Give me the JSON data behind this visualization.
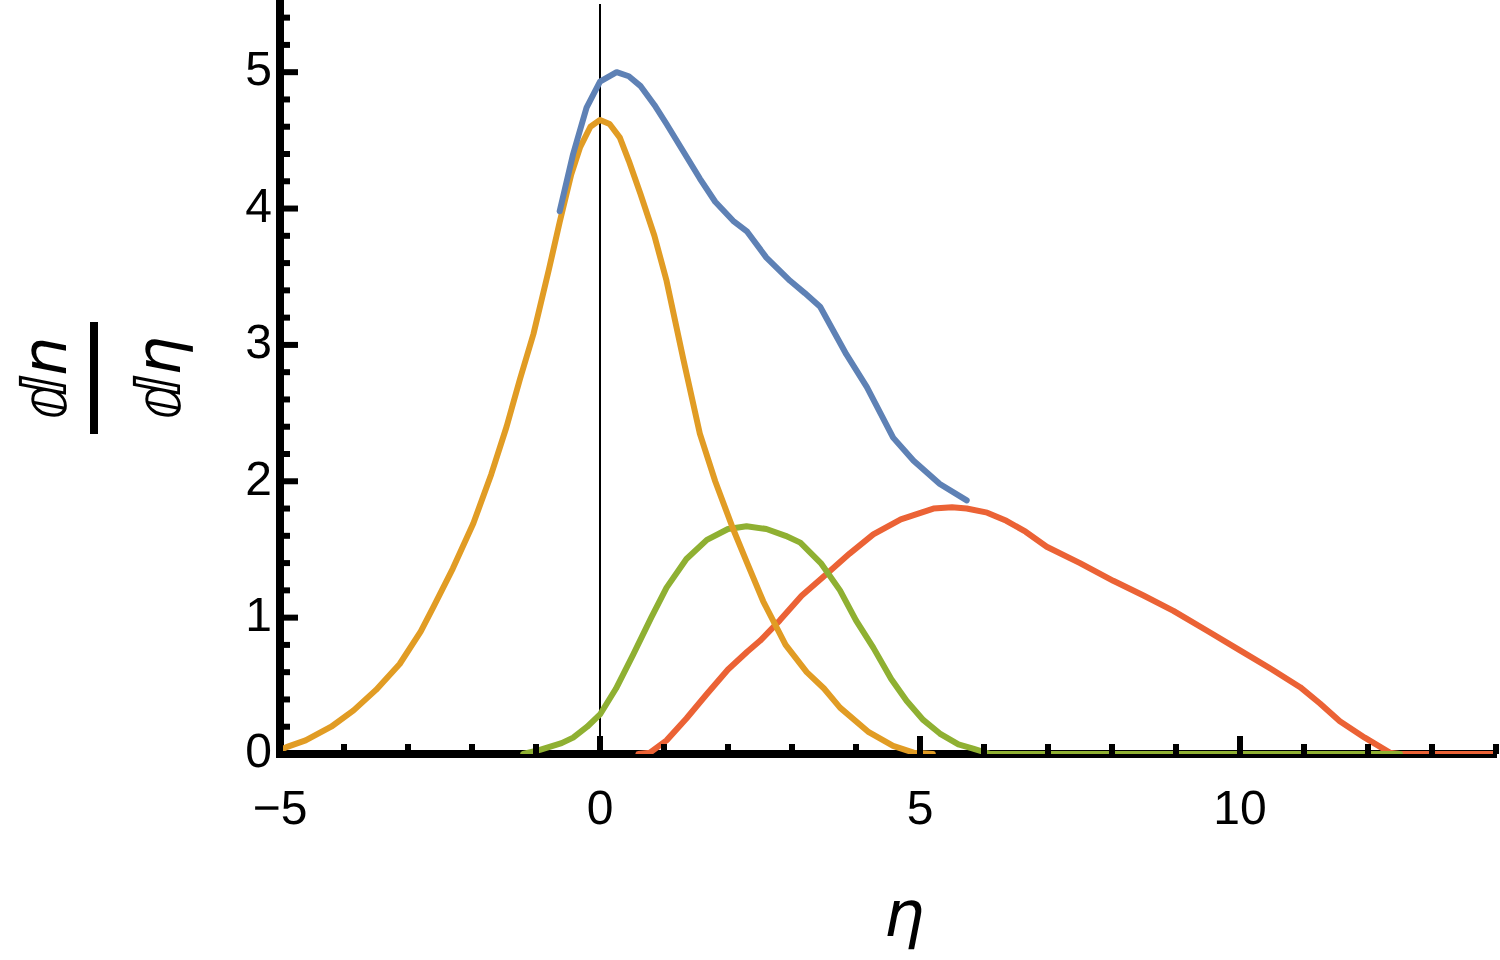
{
  "chart_data": {
    "type": "line",
    "xlabel": "η",
    "ylabel": "ⅆn\nⅆη",
    "xlim": [
      -5,
      14
    ],
    "ylim": [
      0,
      5.5
    ],
    "xticks": [
      {
        "value": -5,
        "label": "−5"
      },
      {
        "value": -4,
        "label": null
      },
      {
        "value": -3,
        "label": null
      },
      {
        "value": -2,
        "label": null
      },
      {
        "value": -1,
        "label": null
      },
      0,
      {
        "value": 1,
        "label": null
      },
      {
        "value": 2,
        "label": null
      },
      {
        "value": 3,
        "label": null
      },
      {
        "value": 4,
        "label": null
      },
      5,
      {
        "value": 6,
        "label": null
      },
      {
        "value": 7,
        "label": null
      },
      {
        "value": 8,
        "label": null
      },
      {
        "value": 9,
        "label": null
      },
      10,
      {
        "value": 11,
        "label": null
      },
      {
        "value": 12,
        "label": null
      },
      {
        "value": 13,
        "label": null
      },
      {
        "value": 14,
        "label": null
      }
    ],
    "yticks": [
      0,
      {
        "value": 0.2,
        "label": null
      },
      {
        "value": 0.4,
        "label": null
      },
      {
        "value": 0.6,
        "label": null
      },
      {
        "value": 0.8,
        "label": null
      },
      1,
      {
        "value": 1.2,
        "label": null
      },
      {
        "value": 1.4,
        "label": null
      },
      {
        "value": 1.6,
        "label": null
      },
      {
        "value": 1.8,
        "label": null
      },
      2,
      {
        "value": 2.2,
        "label": null
      },
      {
        "value": 2.4,
        "label": null
      },
      {
        "value": 2.6,
        "label": null
      },
      {
        "value": 2.8,
        "label": null
      },
      3,
      {
        "value": 3.2,
        "label": null
      },
      {
        "value": 3.4,
        "label": null
      },
      {
        "value": 3.6,
        "label": null
      },
      {
        "value": 3.8,
        "label": null
      },
      4,
      {
        "value": 4.2,
        "label": null
      },
      {
        "value": 4.4,
        "label": null
      },
      {
        "value": 4.6,
        "label": null
      },
      {
        "value": 4.8,
        "label": null
      },
      5,
      {
        "value": 5.2,
        "label": null
      },
      {
        "value": 5.4,
        "label": null
      }
    ],
    "ref_lines": [
      {
        "axis": "x",
        "value": 0,
        "color": "#000000"
      }
    ],
    "series": [
      {
        "color": "#5e81b5",
        "x": [
          -0.63,
          -0.42,
          -0.21,
          0,
          0.26,
          0.45,
          0.63,
          0.85,
          1.04,
          1.3,
          1.56,
          1.8,
          2.08,
          2.3,
          2.6,
          2.97,
          3.2,
          3.44,
          3.65,
          3.85,
          4.17,
          4.58,
          4.9,
          5.31,
          5.73
        ],
        "values": [
          3.98,
          4.4,
          4.74,
          4.93,
          5.0,
          4.97,
          4.9,
          4.76,
          4.62,
          4.42,
          4.22,
          4.05,
          3.91,
          3.83,
          3.64,
          3.47,
          3.38,
          3.28,
          3.1,
          2.93,
          2.69,
          2.32,
          2.15,
          1.98,
          1.86
        ]
      },
      {
        "color": "#e19c24",
        "x": [
          -5,
          -4.9,
          -4.6,
          -4.2,
          -3.85,
          -3.5,
          -3.13,
          -2.8,
          -2.6,
          -2.3,
          -1.98,
          -1.7,
          -1.46,
          -1.25,
          -1.04,
          -0.8,
          -0.63,
          -0.45,
          -0.31,
          -0.15,
          0,
          0.15,
          0.31,
          0.45,
          0.63,
          0.85,
          1.04,
          1.3,
          1.56,
          1.8,
          2.08,
          2.3,
          2.55,
          2.9,
          3.23,
          3.5,
          3.75,
          4.2,
          4.58,
          4.9,
          5.2
        ],
        "values": [
          0.03,
          0.05,
          0.1,
          0.2,
          0.32,
          0.47,
          0.66,
          0.9,
          1.08,
          1.36,
          1.69,
          2.05,
          2.4,
          2.75,
          3.08,
          3.55,
          3.9,
          4.25,
          4.45,
          4.6,
          4.65,
          4.62,
          4.52,
          4.35,
          4.11,
          3.8,
          3.47,
          2.9,
          2.35,
          2.0,
          1.65,
          1.4,
          1.12,
          0.8,
          0.6,
          0.48,
          0.34,
          0.16,
          0.06,
          0.01,
          0
        ]
      },
      {
        "color": "#8fb032",
        "x": [
          -1.2,
          -0.94,
          -0.6,
          -0.42,
          -0.2,
          0,
          0.25,
          0.52,
          0.8,
          1.04,
          1.35,
          1.67,
          2.0,
          2.29,
          2.6,
          2.9,
          3.13,
          3.45,
          3.75,
          4.0,
          4.27,
          4.55,
          4.79,
          5.05,
          5.31,
          5.6,
          5.83,
          6.1,
          12.5
        ],
        "values": [
          0,
          0.03,
          0.08,
          0.12,
          0.2,
          0.29,
          0.48,
          0.73,
          1.0,
          1.22,
          1.43,
          1.57,
          1.65,
          1.67,
          1.65,
          1.6,
          1.55,
          1.4,
          1.2,
          0.98,
          0.78,
          0.55,
          0.39,
          0.25,
          0.15,
          0.07,
          0.04,
          0,
          0
        ]
      },
      {
        "color": "#eb6235",
        "x": [
          0.6,
          0.78,
          1.04,
          1.35,
          1.67,
          2.0,
          2.3,
          2.5,
          2.81,
          3.15,
          3.54,
          3.9,
          4.27,
          4.7,
          5.21,
          5.5,
          5.73,
          6.05,
          6.35,
          6.65,
          6.98,
          7.5,
          8.02,
          8.5,
          8.96,
          9.5,
          10,
          10.5,
          10.94,
          11.25,
          11.56,
          11.95,
          12.34,
          12.5,
          14
        ],
        "values": [
          0,
          0.01,
          0.1,
          0.26,
          0.44,
          0.62,
          0.75,
          0.83,
          0.98,
          1.16,
          1.32,
          1.47,
          1.61,
          1.72,
          1.8,
          1.81,
          1.8,
          1.77,
          1.71,
          1.63,
          1.52,
          1.4,
          1.27,
          1.16,
          1.05,
          0.9,
          0.76,
          0.62,
          0.49,
          0.37,
          0.24,
          0.12,
          0.01,
          0,
          0
        ]
      }
    ]
  }
}
